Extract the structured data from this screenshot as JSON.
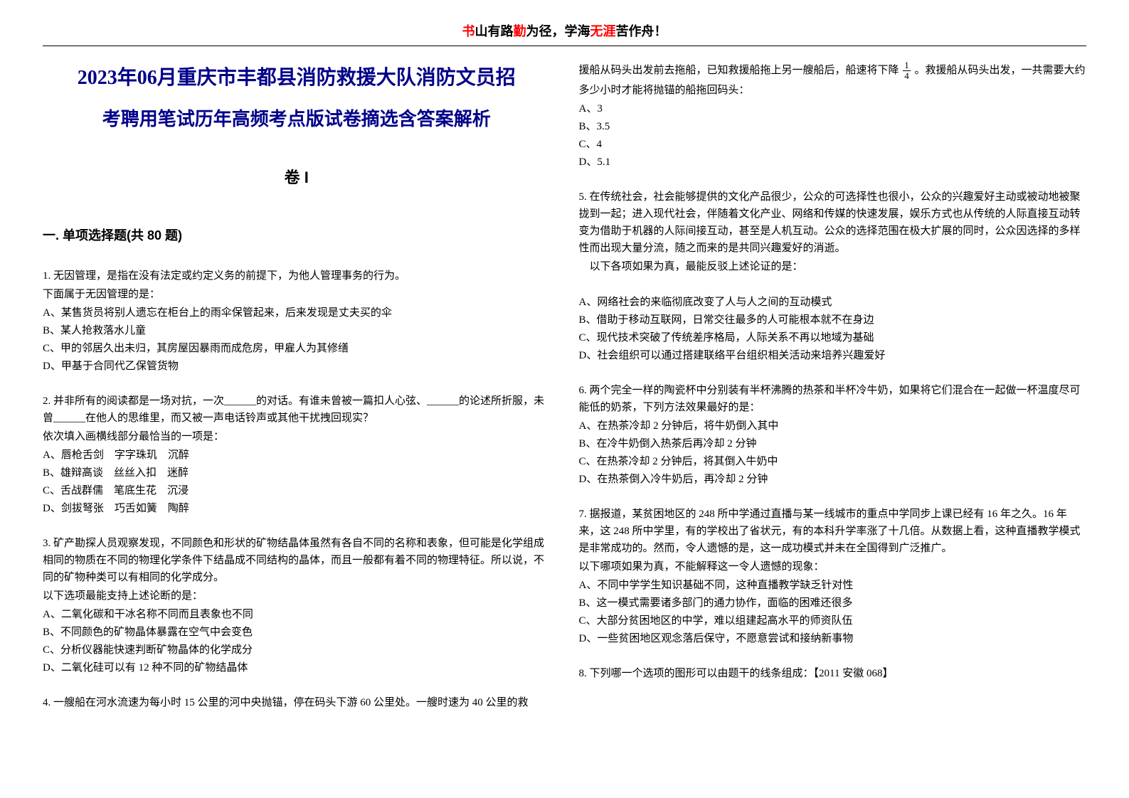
{
  "motto": {
    "p1_red": "书",
    "p2_black": "山有路",
    "p3_red": "勤",
    "p4_black": "为径，学海",
    "p5_red": "无涯",
    "p6_black": "苦作舟！"
  },
  "title_line1": "2023年06月重庆市丰都县消防救援大队消防文员招",
  "title_line2": "考聘用笔试历年高频考点版试卷摘选含答案解析",
  "volume_label": "卷 I",
  "section_title": "一. 单项选择题(共 80 题)",
  "left_questions": [
    {
      "stem": "1. 无因管理，是指在没有法定或约定义务的前提下，为他人管理事务的行为。",
      "sub": "下面属于无因管理的是：",
      "options": [
        "A、某售货员将别人遗忘在柜台上的雨伞保管起来，后来发现是丈夫买的伞",
        "B、某人抢救落水儿童",
        "C、甲的邻居久出未归，其房屋因暴雨而成危房，甲雇人为其修缮",
        "D、甲基于合同代乙保管货物"
      ]
    },
    {
      "stem": "2. 并非所有的阅读都是一场对抗，一次______的对话。有谁未曾被一篇扣人心弦、______的论述所折服，未曾______在他人的思维里，而又被一声电话铃声或其他干扰拽回现实？",
      "sub": "依次填入画横线部分最恰当的一项是：",
      "options": [
        "A、唇枪舌剑　字字珠玑　沉醉",
        "B、雄辩高谈　丝丝入扣　迷醉",
        "C、舌战群儒　笔底生花　沉浸",
        "D、剑拔弩张　巧舌如簧　陶醉"
      ]
    },
    {
      "stem": "3. 矿产勘探人员观察发现，不同颜色和形状的矿物结晶体虽然有各自不同的名称和表象，但可能是化学组成相同的物质在不同的物理化学条件下结晶成不同结构的晶体，而且一般都有着不同的物理特征。所以说，不同的矿物种类可以有相同的化学成分。",
      "sub": "以下选项最能支持上述论断的是：",
      "options": [
        "A、二氧化碳和干冰名称不同而且表象也不同",
        "B、不同颜色的矿物晶体暴露在空气中会变色",
        "C、分析仪器能快速判断矿物晶体的化学成分",
        "D、二氧化硅可以有 12 种不同的矿物结晶体"
      ]
    },
    {
      "stem": "4. 一艘船在河水流速为每小时 15 公里的河中央抛锚，停在码头下游 60 公里处。一艘时速为 40 公里的救",
      "sub": "",
      "options": []
    }
  ],
  "right_continuation": {
    "text_before_frac": "援船从码头出发前去拖船，已知救援船拖上另一艘船后，船速将下降",
    "frac_num": "1",
    "frac_den": "4",
    "text_after_frac": "。救援船从码头出发，一共需要大约多少小时才能将抛锚的船拖回码头：",
    "options": [
      "A、3",
      "B、3.5",
      "C、4",
      "D、5.1"
    ]
  },
  "right_questions": [
    {
      "stem": "5. 在传统社会，社会能够提供的文化产品很少，公众的可选择性也很小，公众的兴趣爱好主动或被动地被聚拢到一起；进入现代社会，伴随着文化产业、网络和传媒的快速发展，娱乐方式也从传统的人际直接互动转变为借助于机器的人际间接互动，甚至是人机互动。公众的选择范围在极大扩展的同时，公众因选择的多样性而出现大量分流，随之而来的是共同兴趣爱好的消逝。",
      "sub": "　以下各项如果为真，最能反驳上述论证的是：",
      "options": [
        "A、网络社会的来临彻底改变了人与人之间的互动模式",
        "B、借助于移动互联网，日常交往最多的人可能根本就不在身边",
        "C、现代技术突破了传统差序格局，人际关系不再以地域为基础",
        "D、社会组织可以通过搭建联络平台组织相关活动来培养兴趣爱好"
      ]
    },
    {
      "stem": "6. 两个完全一样的陶瓷杯中分别装有半杯沸腾的热茶和半杯冷牛奶，如果将它们混合在一起做一杯温度尽可能低的奶茶，下列方法效果最好的是：",
      "sub": "",
      "options": [
        "A、在热茶冷却 2 分钟后，将牛奶倒入其中",
        "B、在冷牛奶倒入热茶后再冷却 2 分钟",
        "C、在热茶冷却 2 分钟后，将其倒入牛奶中",
        "D、在热茶倒入冷牛奶后，再冷却 2 分钟"
      ]
    },
    {
      "stem": "7. 据报道，某贫困地区的 248 所中学通过直播与某一线城市的重点中学同步上课已经有 16 年之久。16 年来，这 248 所中学里，有的学校出了省状元，有的本科升学率涨了十几倍。从数据上看，这种直播教学模式是非常成功的。然而，令人遗憾的是，这一成功模式并未在全国得到广泛推广。",
      "sub": "以下哪项如果为真，不能解释这一令人遗憾的现象：",
      "options": [
        "A、不同中学学生知识基础不同，这种直播教学缺乏针对性",
        "B、这一模式需要诸多部门的通力协作，面临的困难还很多",
        "C、大部分贫困地区的中学，难以组建起高水平的师资队伍",
        "D、一些贫困地区观念落后保守，不愿意尝试和接纳新事物"
      ]
    },
    {
      "stem": "8. 下列哪一个选项的图形可以由题干的线条组成：【2011 安徽 068】",
      "sub": "",
      "options": []
    }
  ],
  "colors": {
    "title": "#00008b",
    "red": "#ff0000",
    "black": "#000000",
    "background": "#ffffff"
  }
}
